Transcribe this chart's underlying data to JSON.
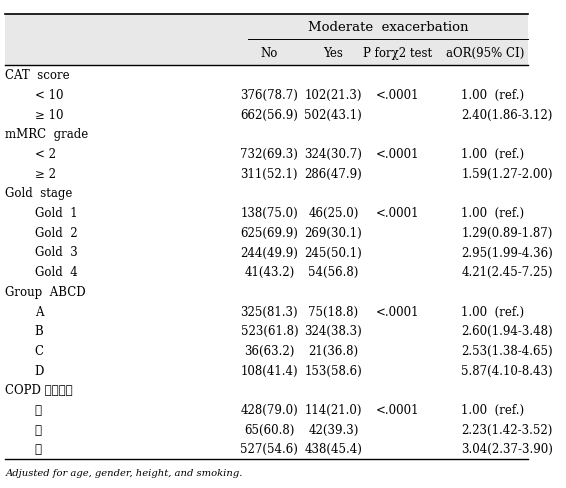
{
  "title": "Moderate  exacerbation",
  "col_headers": [
    "No",
    "Yes",
    "P forχ2 test",
    "aOR(95% CI)"
  ],
  "rows": [
    {
      "label": "CAT  score",
      "indent": 0,
      "no": "",
      "yes": "",
      "p": "",
      "aor": ""
    },
    {
      "label": "< 10",
      "indent": 1,
      "no": "376(78.7)",
      "yes": "102(21.3)",
      "p": "<.0001",
      "aor": "1.00  (ref.)"
    },
    {
      "label": "≥ 10",
      "indent": 1,
      "no": "662(56.9)",
      "yes": "502(43.1)",
      "p": "",
      "aor": "2.40(1.86-3.12)"
    },
    {
      "label": "mMRC  grade",
      "indent": 0,
      "no": "",
      "yes": "",
      "p": "",
      "aor": ""
    },
    {
      "label": "< 2",
      "indent": 1,
      "no": "732(69.3)",
      "yes": "324(30.7)",
      "p": "<.0001",
      "aor": "1.00  (ref.)"
    },
    {
      "label": "≥ 2",
      "indent": 1,
      "no": "311(52.1)",
      "yes": "286(47.9)",
      "p": "",
      "aor": "1.59(1.27-2.00)"
    },
    {
      "label": "Gold  stage",
      "indent": 0,
      "no": "",
      "yes": "",
      "p": "",
      "aor": ""
    },
    {
      "label": "Gold  1",
      "indent": 1,
      "no": "138(75.0)",
      "yes": "46(25.0)",
      "p": "<.0001",
      "aor": "1.00  (ref.)"
    },
    {
      "label": "Gold  2",
      "indent": 1,
      "no": "625(69.9)",
      "yes": "269(30.1)",
      "p": "",
      "aor": "1.29(0.89-1.87)"
    },
    {
      "label": "Gold  3",
      "indent": 1,
      "no": "244(49.9)",
      "yes": "245(50.1)",
      "p": "",
      "aor": "2.95(1.99-4.36)"
    },
    {
      "label": "Gold  4",
      "indent": 1,
      "no": "41(43.2)",
      "yes": "54(56.8)",
      "p": "",
      "aor": "4.21(2.45-7.25)"
    },
    {
      "label": "Group  ABCD",
      "indent": 0,
      "no": "",
      "yes": "",
      "p": "",
      "aor": ""
    },
    {
      "label": "A",
      "indent": 1,
      "no": "325(81.3)",
      "yes": "75(18.8)",
      "p": "<.0001",
      "aor": "1.00  (ref.)"
    },
    {
      "label": "B",
      "indent": 1,
      "no": "523(61.8)",
      "yes": "324(38.3)",
      "p": "",
      "aor": "2.60(1.94-3.48)"
    },
    {
      "label": "C",
      "indent": 1,
      "no": "36(63.2)",
      "yes": "21(36.8)",
      "p": "",
      "aor": "2.53(1.38-4.65)"
    },
    {
      "label": "D",
      "indent": 1,
      "no": "108(41.4)",
      "yes": "153(58.6)",
      "p": "",
      "aor": "5.87(4.10-8.43)"
    },
    {
      "label": "COPD 국내지침",
      "indent": 0,
      "no": "",
      "yes": "",
      "p": "",
      "aor": ""
    },
    {
      "label": "가",
      "indent": 1,
      "no": "428(79.0)",
      "yes": "114(21.0)",
      "p": "<.0001",
      "aor": "1.00  (ref.)"
    },
    {
      "label": "나",
      "indent": 1,
      "no": "65(60.8)",
      "yes": "42(39.3)",
      "p": "",
      "aor": "2.23(1.42-3.52)"
    },
    {
      "label": "다",
      "indent": 1,
      "no": "527(54.6)",
      "yes": "438(45.4)",
      "p": "",
      "aor": "3.04(2.37-3.90)"
    }
  ],
  "footnote": "Adjusted for age, gender, height, and smoking.",
  "font_size": 8.5,
  "title_font_size": 9.5
}
